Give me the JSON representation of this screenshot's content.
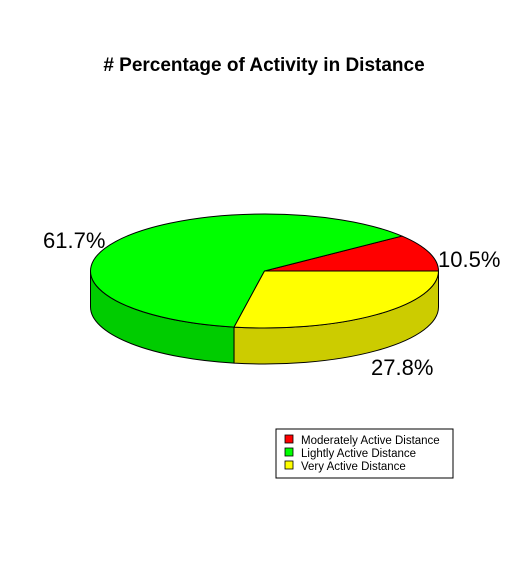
{
  "chart_data": {
    "type": "pie",
    "style": "3d",
    "title": "# Percentage of Activity in Distance",
    "categories": [
      "Moderately Active Distance",
      "Lightly Active Distance",
      "Very Active Distance"
    ],
    "values": [
      10.5,
      61.7,
      27.8
    ],
    "value_labels": [
      "10.5%",
      "61.7%",
      "27.8%"
    ],
    "colors": [
      "#ff0000",
      "#00ff00",
      "#ffff00"
    ],
    "side_colors": [
      "#d10000",
      "#00cc00",
      "#cccc00"
    ],
    "legend": {
      "position": "bottom-right",
      "entries": [
        {
          "label": "Moderately Active Distance",
          "color": "#ff0000"
        },
        {
          "label": "Lightly Active Distance",
          "color": "#00ff00"
        },
        {
          "label": "Very Active Distance",
          "color": "#ffff00"
        }
      ]
    }
  }
}
